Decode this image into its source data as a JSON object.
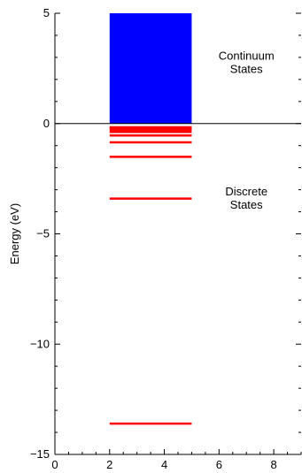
{
  "chart_data": {
    "type": "bar",
    "title": "",
    "xlabel": "",
    "ylabel": "Energy (eV)",
    "xlim": [
      0,
      9
    ],
    "ylim": [
      -15,
      5
    ],
    "xticks": [
      0,
      2,
      4,
      6,
      8
    ],
    "yticks": [
      -15,
      -10,
      -5,
      0,
      5
    ],
    "grid": false,
    "continuum": {
      "x_range": [
        2,
        5
      ],
      "y_range": [
        0,
        5
      ],
      "color": "#0000ff"
    },
    "discrete_levels": {
      "x_range": [
        2,
        5
      ],
      "energies": [
        -13.6,
        -3.4,
        -1.51,
        -0.85,
        -0.54,
        -0.38,
        -0.28,
        -0.21,
        -0.17
      ],
      "color": "#ff0000"
    },
    "zero_line": {
      "y": 0,
      "color": "#000000"
    },
    "annotations": [
      {
        "id": "continuum",
        "lines": [
          "Continuum",
          "States"
        ],
        "x": 7,
        "y": 2.75
      },
      {
        "id": "discrete",
        "lines": [
          "Discrete",
          "States"
        ],
        "x": 7,
        "y": -3.4
      }
    ]
  }
}
